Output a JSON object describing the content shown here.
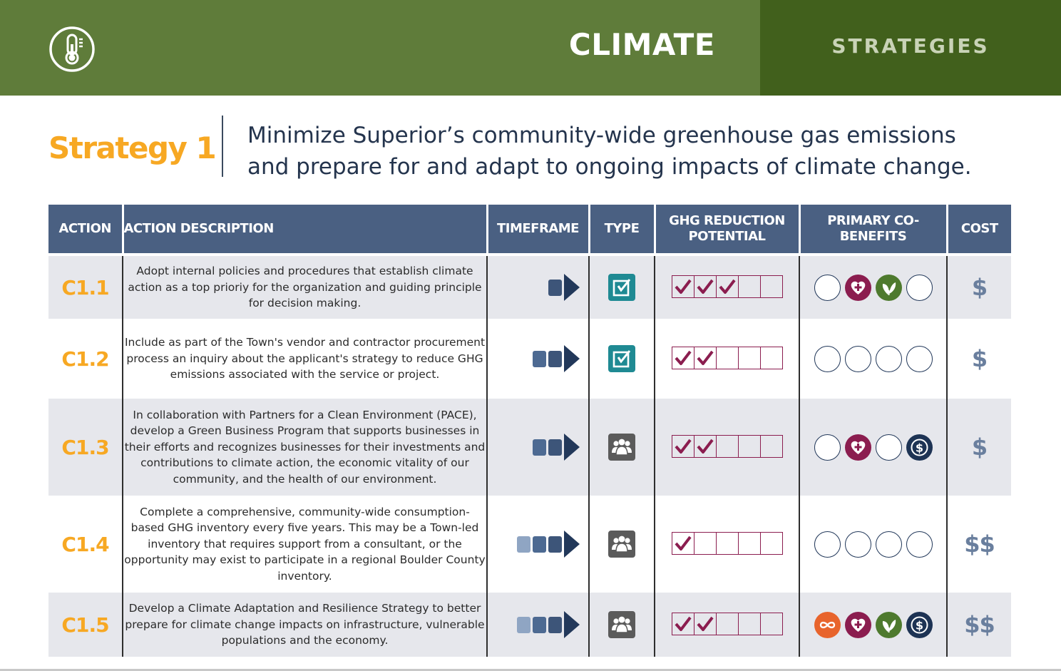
{
  "header": {
    "icon": "thermometer-icon",
    "title": "CLIMATE",
    "section": "STRATEGIES",
    "colors": {
      "main": "#5f7c3a",
      "side": "#41601c"
    }
  },
  "strategy": {
    "label": "Strategy 1",
    "text": "Minimize Superior’s community-wide greenhouse gas emissions and prepare for and adapt to ongoing impacts of climate change.",
    "label_color": "#f7a823"
  },
  "table": {
    "headers": {
      "action": "ACTION",
      "description": "ACTION DESCRIPTION",
      "timeframe": "TIMEFRAME",
      "type": "TYPE",
      "ghg": "GHG REDUCTION POTENTIAL",
      "cobenefits": "PRIMARY CO-BENEFITS",
      "cost": "COST"
    },
    "ghg_max": 5,
    "rows": [
      {
        "id": "C1.1",
        "description": "Adopt internal policies and procedures that establish climate action as a top prioriy for the organization and guiding principle for decision making.",
        "timeframe": 1,
        "type": "policy",
        "ghg": 3,
        "cobenefits": [
          "empty",
          "health",
          "environment",
          "empty"
        ],
        "cost": "$"
      },
      {
        "id": "C1.2",
        "description": "Include as part of the Town's vendor and contractor procurement process an inquiry about the applicant's strategy to reduce GHG emissions associated with the service or project.",
        "timeframe": 2,
        "type": "policy",
        "ghg": 2,
        "cobenefits": [
          "empty",
          "empty",
          "empty",
          "empty"
        ],
        "cost": "$"
      },
      {
        "id": "C1.3",
        "description": "In collaboration with Partners for a Clean Environment (PACE), develop a Green Business Program that supports businesses in their efforts and recognizes businesses for their investments and contributions to climate action, the economic vitality of our community, and the health of our environment.",
        "timeframe": 2,
        "type": "community",
        "ghg": 2,
        "cobenefits": [
          "empty",
          "health",
          "empty",
          "economy"
        ],
        "cost": "$"
      },
      {
        "id": "C1.4",
        "description": "Complete a comprehensive, community-wide consumption-based GHG inventory every five years. This may be a Town-led inventory that requires support from a consultant, or the opportunity may exist to participate in a regional Boulder County inventory.",
        "timeframe": 3,
        "type": "community",
        "ghg": 1,
        "cobenefits": [
          "empty",
          "empty",
          "empty",
          "empty"
        ],
        "cost": "$$"
      },
      {
        "id": "C1.5",
        "description": "Develop a Climate Adaptation and Resilience Strategy to better prepare for climate change impacts on infrastructure, vulnerable populations and the economy.",
        "timeframe": 3,
        "type": "community",
        "ghg": 2,
        "cobenefits": [
          "resilience",
          "health",
          "environment",
          "economy"
        ],
        "cost": "$$"
      }
    ]
  },
  "icons": {
    "type_policy": "policy-checkbox-icon",
    "type_community": "community-group-icon",
    "cobenefit_health": "heart-plus-icon",
    "cobenefit_environment": "leaf-icon",
    "cobenefit_economy": "dollar-coin-icon",
    "cobenefit_resilience": "infinity-icon"
  },
  "colors": {
    "header_row": "#4a6082",
    "ghg": "#8b1d4f",
    "policy": "#1f8a93",
    "community": "#5b5b5b",
    "health": "#8b1d4f",
    "environment": "#4e7a2e",
    "economy": "#1d3354",
    "resilience": "#e8642c",
    "cost": "#6a7f9e"
  }
}
